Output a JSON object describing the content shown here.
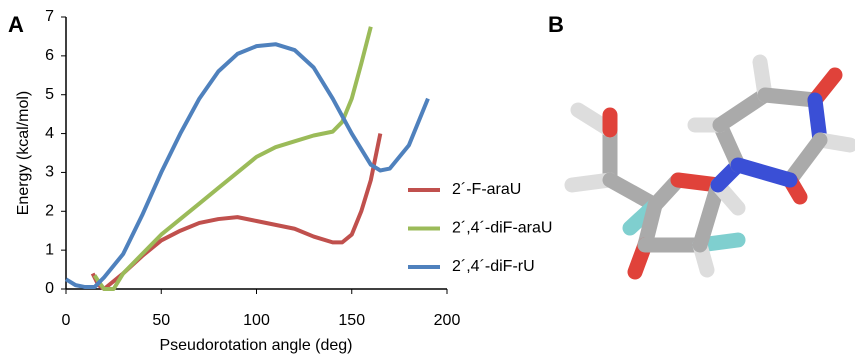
{
  "chart_data": {
    "type": "line",
    "panel_label": "A",
    "y_label": "Energy (kcal/mol)",
    "x_label": "Pseudorotation angle (deg)",
    "xlim": [
      0,
      200
    ],
    "xticks": [
      0,
      50,
      100,
      150,
      200
    ],
    "ylim": [
      0,
      7
    ],
    "yticks": [
      0,
      1,
      2,
      3,
      4,
      5,
      6,
      7
    ],
    "legend": "right",
    "series": [
      {
        "name": "2´-F-araU",
        "color": "#c0504d",
        "x": [
          14,
          17,
          20,
          30,
          40,
          50,
          60,
          70,
          80,
          90,
          100,
          110,
          120,
          130,
          140,
          145,
          150,
          155,
          160,
          165
        ],
        "values": [
          0.4,
          0.1,
          0,
          0.4,
          0.85,
          1.25,
          1.5,
          1.7,
          1.8,
          1.85,
          1.75,
          1.65,
          1.55,
          1.35,
          1.2,
          1.2,
          1.4,
          2.0,
          2.8,
          4.0
        ]
      },
      {
        "name": "2´,4´-diF-araU",
        "color": "#9bbb59",
        "x": [
          15,
          17,
          20,
          25,
          30,
          40,
          50,
          60,
          70,
          80,
          90,
          100,
          110,
          120,
          130,
          140,
          145,
          150,
          155,
          160
        ],
        "values": [
          0.35,
          0.2,
          0,
          0,
          0.4,
          0.9,
          1.4,
          1.8,
          2.2,
          2.6,
          3.0,
          3.4,
          3.65,
          3.8,
          3.95,
          4.05,
          4.3,
          4.9,
          5.8,
          6.75
        ]
      },
      {
        "name": "2´,4´-diF-rU",
        "color": "#4f81bd",
        "x": [
          0,
          5,
          10,
          15,
          20,
          30,
          40,
          50,
          60,
          70,
          80,
          90,
          100,
          110,
          120,
          130,
          140,
          150,
          160,
          165,
          170,
          180,
          190
        ],
        "values": [
          0.25,
          0.1,
          0.05,
          0.05,
          0.3,
          0.9,
          1.9,
          3.0,
          4.0,
          4.9,
          5.6,
          6.05,
          6.25,
          6.3,
          6.15,
          5.7,
          4.9,
          4.0,
          3.2,
          3.05,
          3.1,
          3.7,
          4.9
        ]
      }
    ]
  },
  "molecule": {
    "panel_label": "B"
  }
}
